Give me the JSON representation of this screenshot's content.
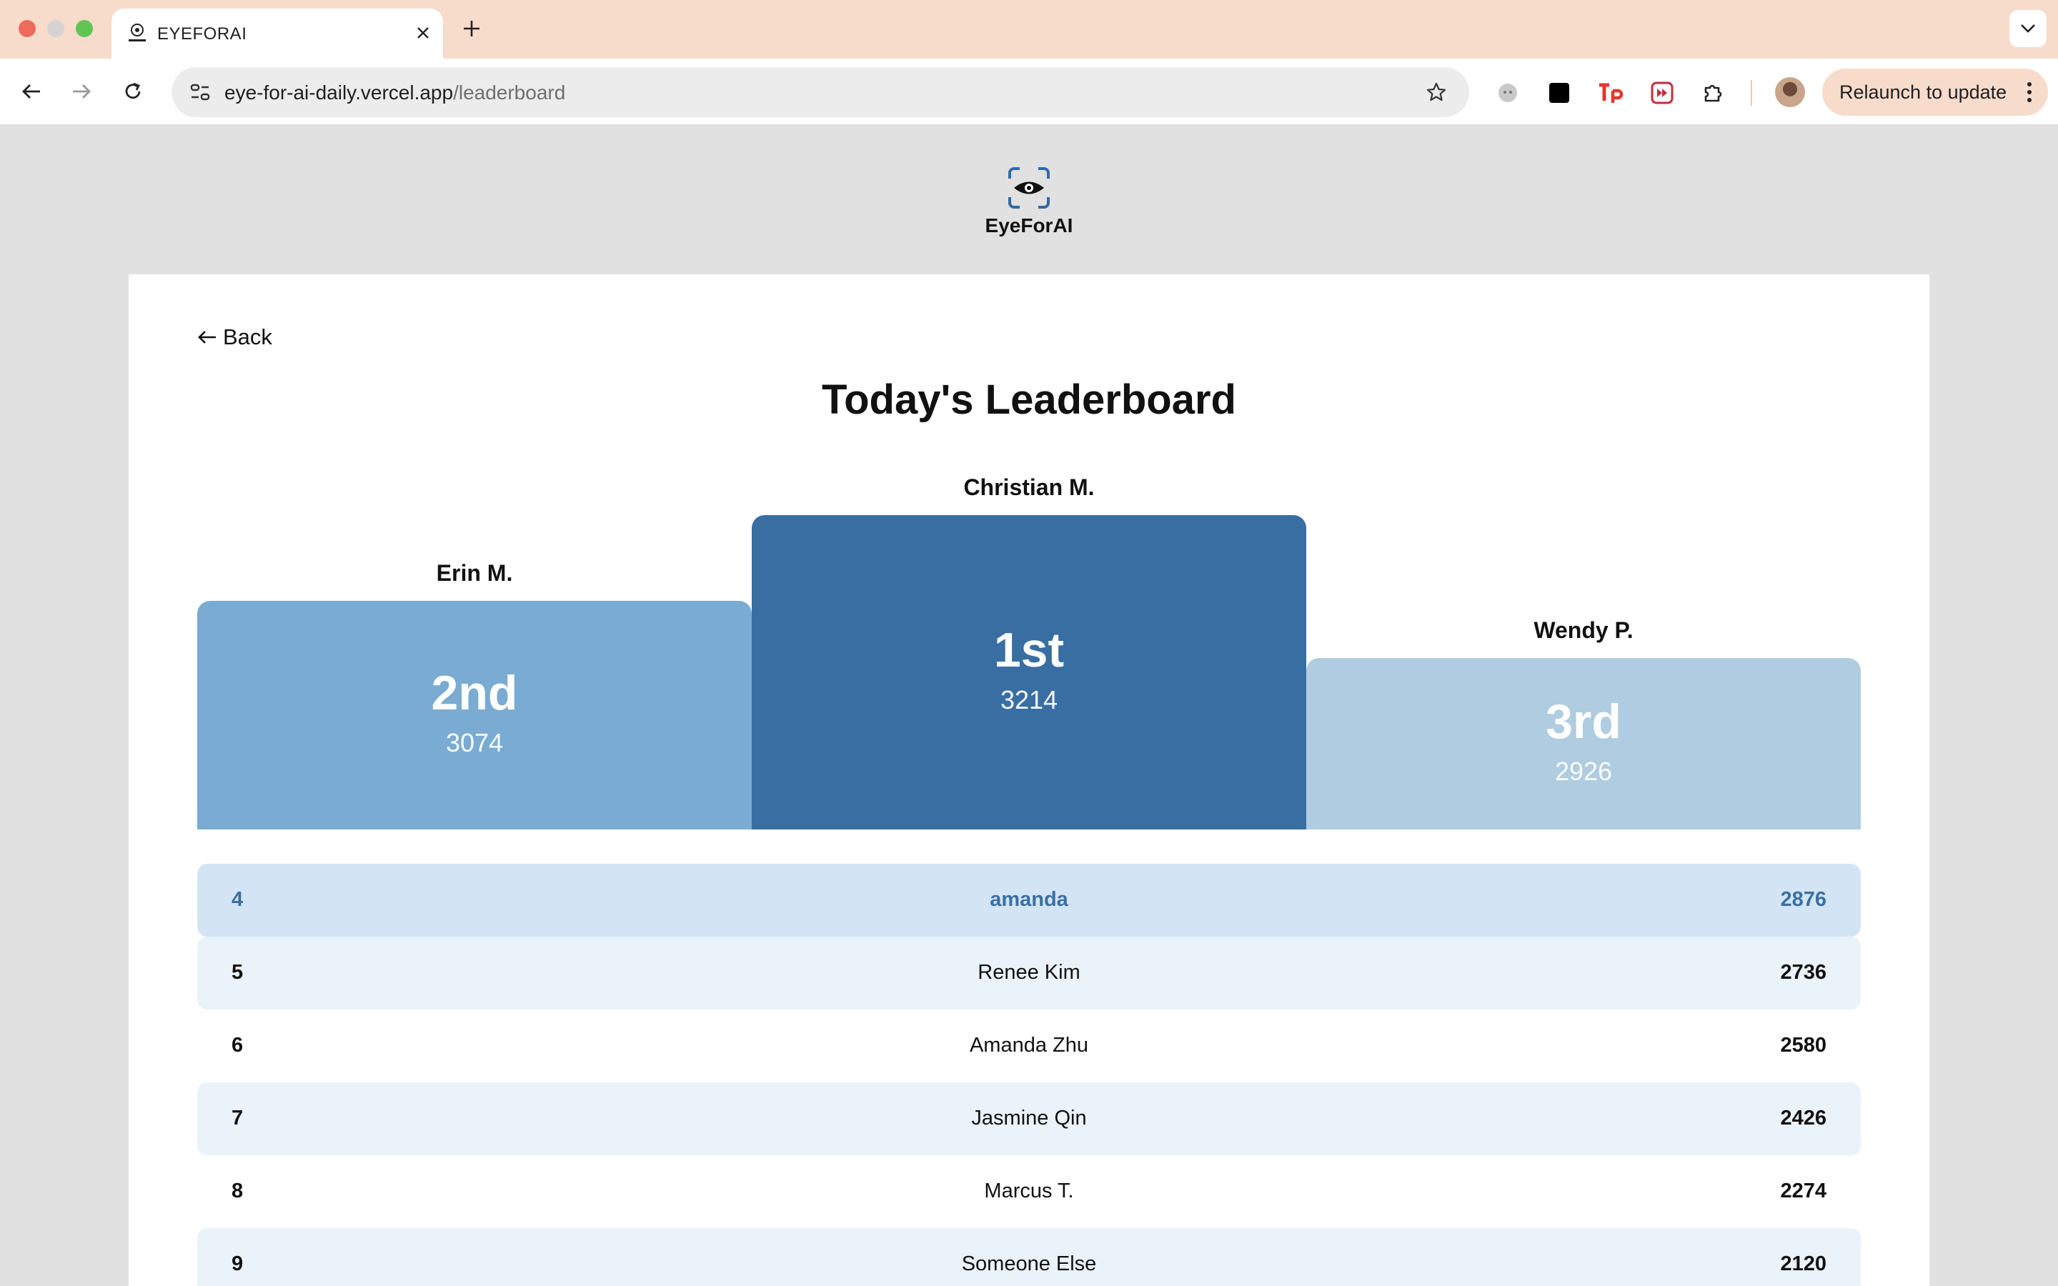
{
  "browser": {
    "tab_title": "EYEFORAI",
    "url_host": "eye-for-ai-daily.vercel.app",
    "url_path": "/leaderboard",
    "relaunch_label": "Relaunch to update"
  },
  "header": {
    "logo_text": "EyeForAI"
  },
  "page": {
    "back_label": "Back",
    "title": "Today's Leaderboard"
  },
  "podium": {
    "first": {
      "name": "Christian M.",
      "rank": "1st",
      "score": "3214"
    },
    "second": {
      "name": "Erin M.",
      "rank": "2nd",
      "score": "3074"
    },
    "third": {
      "name": "Wendy P.",
      "rank": "3rd",
      "score": "2926"
    }
  },
  "rows": [
    {
      "rank": "4",
      "name": "amanda",
      "score": "2876"
    },
    {
      "rank": "5",
      "name": "Renee Kim",
      "score": "2736"
    },
    {
      "rank": "6",
      "name": "Amanda Zhu",
      "score": "2580"
    },
    {
      "rank": "7",
      "name": "Jasmine Qin",
      "score": "2426"
    },
    {
      "rank": "8",
      "name": "Marcus T.",
      "score": "2274"
    },
    {
      "rank": "9",
      "name": "Someone Else",
      "score": "2120"
    }
  ],
  "colors": {
    "first": "#396ea3",
    "second": "#7aabd2",
    "third": "#afcce0",
    "highlight_row": "#d3e5f5",
    "stripe_row": "#eaf2fa"
  }
}
